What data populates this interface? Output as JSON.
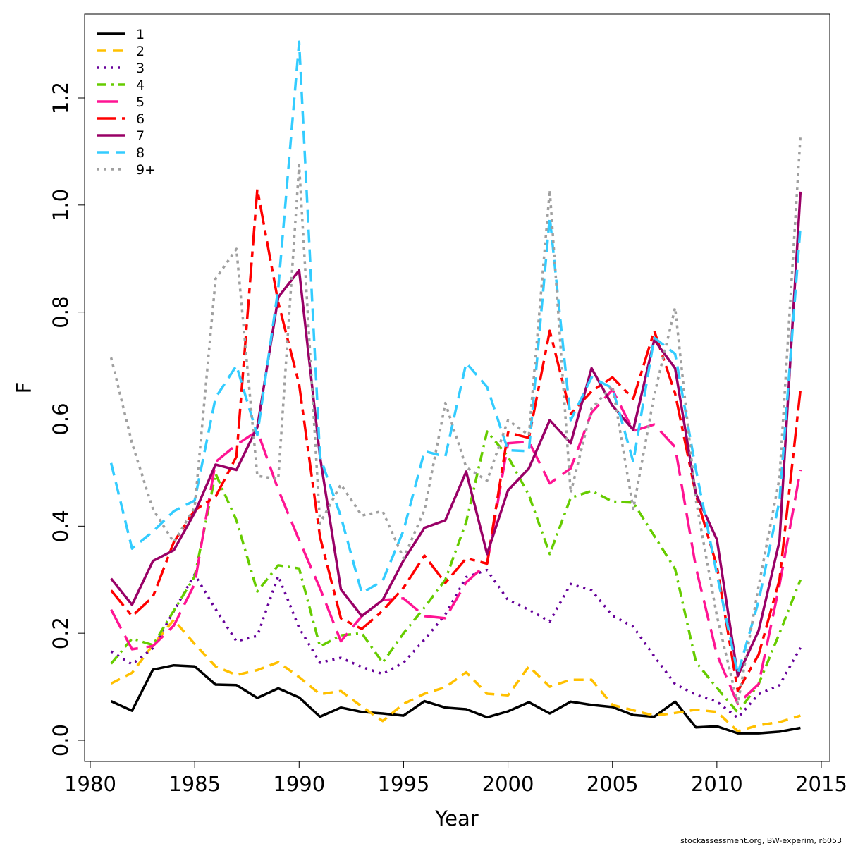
{
  "chart_data": {
    "type": "line",
    "title": "",
    "xlabel": "Year",
    "ylabel": "F",
    "xlim": [
      1980,
      2015
    ],
    "ylim": [
      0.0,
      1.3
    ],
    "xticks": [
      "1980",
      "1985",
      "1990",
      "1995",
      "2000",
      "2005",
      "2010",
      "2015"
    ],
    "yticks": [
      "0.0",
      "0.2",
      "0.4",
      "0.6",
      "0.8",
      "1.0",
      "1.2"
    ],
    "grid": false,
    "legend_position": "top-left",
    "x": [
      1981,
      1982,
      1983,
      1984,
      1985,
      1986,
      1987,
      1988,
      1989,
      1990,
      1991,
      1992,
      1993,
      1994,
      1995,
      1996,
      1997,
      1998,
      1999,
      2000,
      2001,
      2002,
      2003,
      2004,
      2005,
      2006,
      2007,
      2008,
      2009,
      2010,
      2011,
      2012,
      2013,
      2014
    ],
    "series": [
      {
        "name": "1",
        "color": "#000000",
        "dash": "",
        "width": 3.5,
        "values": [
          0.073,
          0.055,
          0.132,
          0.14,
          0.138,
          0.104,
          0.103,
          0.079,
          0.097,
          0.08,
          0.044,
          0.061,
          0.053,
          0.05,
          0.046,
          0.073,
          0.061,
          0.058,
          0.043,
          0.054,
          0.071,
          0.05,
          0.072,
          0.066,
          0.062,
          0.047,
          0.044,
          0.072,
          0.024,
          0.026,
          0.013,
          0.013,
          0.016,
          0.023
        ]
      },
      {
        "name": "2",
        "color": "#FFC000",
        "dash": "14,9",
        "width": 3.5,
        "values": [
          0.106,
          0.126,
          0.178,
          0.225,
          0.18,
          0.138,
          0.122,
          0.131,
          0.146,
          0.118,
          0.086,
          0.092,
          0.063,
          0.036,
          0.068,
          0.087,
          0.099,
          0.127,
          0.087,
          0.084,
          0.138,
          0.1,
          0.113,
          0.113,
          0.066,
          0.056,
          0.046,
          0.051,
          0.057,
          0.053,
          0.017,
          0.028,
          0.034,
          0.046
        ]
      },
      {
        "name": "3",
        "color": "#660099",
        "dash": "3,7",
        "width": 3.5,
        "values": [
          0.166,
          0.142,
          0.172,
          0.241,
          0.31,
          0.245,
          0.185,
          0.195,
          0.307,
          0.21,
          0.145,
          0.154,
          0.137,
          0.124,
          0.145,
          0.188,
          0.235,
          0.305,
          0.318,
          0.262,
          0.244,
          0.222,
          0.292,
          0.28,
          0.233,
          0.212,
          0.157,
          0.105,
          0.085,
          0.072,
          0.042,
          0.086,
          0.103,
          0.173
        ]
      },
      {
        "name": "4",
        "color": "#66CC00",
        "dash": "14,7,3,7",
        "width": 3.5,
        "values": [
          0.143,
          0.19,
          0.178,
          0.242,
          0.306,
          0.498,
          0.411,
          0.278,
          0.327,
          0.321,
          0.175,
          0.196,
          0.2,
          0.145,
          0.2,
          0.248,
          0.3,
          0.408,
          0.577,
          0.53,
          0.458,
          0.348,
          0.453,
          0.466,
          0.446,
          0.444,
          0.382,
          0.32,
          0.146,
          0.098,
          0.052,
          0.105,
          0.2,
          0.3
        ]
      },
      {
        "name": "5",
        "color": "#FF1493",
        "dash": "30,12",
        "width": 3.5,
        "values": [
          0.244,
          0.17,
          0.176,
          0.214,
          0.292,
          0.52,
          0.552,
          0.578,
          0.468,
          0.374,
          0.284,
          0.185,
          0.232,
          0.262,
          0.265,
          0.232,
          0.228,
          0.295,
          0.33,
          0.555,
          0.558,
          0.48,
          0.508,
          0.612,
          0.655,
          0.578,
          0.59,
          0.548,
          0.322,
          0.16,
          0.068,
          0.105,
          0.29,
          0.505
        ]
      },
      {
        "name": "6",
        "color": "#FF0000",
        "dash": "28,8,8,8",
        "width": 3.5,
        "values": [
          0.28,
          0.232,
          0.268,
          0.37,
          0.43,
          0.455,
          0.53,
          1.03,
          0.818,
          0.665,
          0.38,
          0.228,
          0.208,
          0.242,
          0.285,
          0.345,
          0.294,
          0.34,
          0.33,
          0.575,
          0.565,
          0.765,
          0.61,
          0.652,
          0.678,
          0.638,
          0.765,
          0.648,
          0.458,
          0.325,
          0.092,
          0.16,
          0.3,
          0.655
        ]
      },
      {
        "name": "7",
        "color": "#990066",
        "dash": "",
        "width": 3.5,
        "values": [
          0.302,
          0.253,
          0.335,
          0.355,
          0.425,
          0.515,
          0.505,
          0.585,
          0.828,
          0.878,
          0.53,
          0.282,
          0.232,
          0.262,
          0.336,
          0.397,
          0.411,
          0.502,
          0.348,
          0.467,
          0.508,
          0.598,
          0.555,
          0.695,
          0.625,
          0.58,
          0.748,
          0.695,
          0.46,
          0.375,
          0.12,
          0.205,
          0.372,
          1.025
        ]
      },
      {
        "name": "8",
        "color": "#33CCFF",
        "dash": "18,10",
        "width": 3.5,
        "values": [
          0.518,
          0.358,
          0.39,
          0.428,
          0.448,
          0.64,
          0.7,
          0.57,
          0.845,
          1.305,
          0.53,
          0.418,
          0.275,
          0.298,
          0.392,
          0.54,
          0.53,
          0.705,
          0.66,
          0.542,
          0.54,
          0.978,
          0.598,
          0.678,
          0.658,
          0.52,
          0.752,
          0.722,
          0.505,
          0.31,
          0.124,
          0.26,
          0.448,
          0.96
        ]
      },
      {
        "name": "9+",
        "color": "#A0A0A0",
        "dash": "4,6",
        "width": 3.5,
        "values": [
          0.715,
          0.555,
          0.432,
          0.37,
          0.435,
          0.862,
          0.918,
          0.494,
          0.488,
          1.075,
          0.405,
          0.478,
          0.42,
          0.428,
          0.34,
          0.43,
          0.63,
          0.51,
          0.485,
          0.598,
          0.57,
          1.028,
          0.462,
          0.62,
          0.662,
          0.432,
          0.645,
          0.808,
          0.448,
          0.232,
          0.068,
          0.288,
          0.49,
          1.13
        ]
      }
    ]
  },
  "credit": "stockassessment.org, BW-experim, r6053"
}
